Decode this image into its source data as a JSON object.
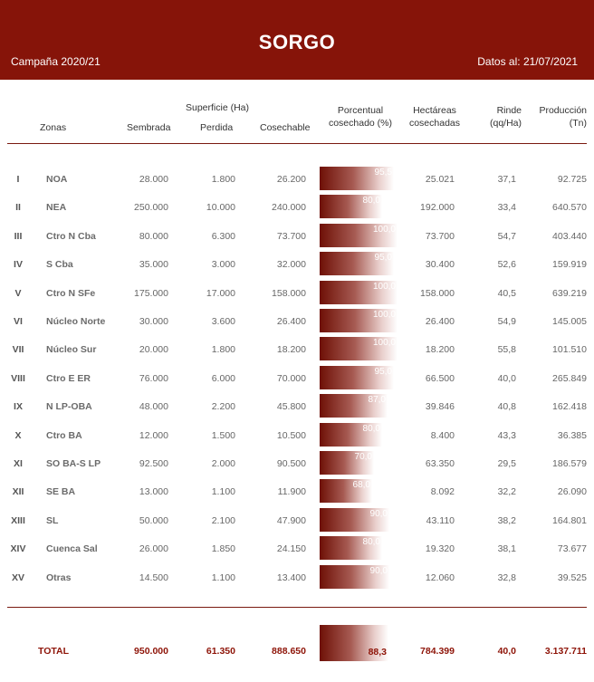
{
  "header": {
    "title": "SORGO",
    "campaign": "Campaña 2020/21",
    "date": "Datos al: 21/07/2021"
  },
  "columns": {
    "zonas": "Zonas",
    "superficie": "Superficie (Ha)",
    "sembrada": "Sembrada",
    "perdida": "Perdida",
    "cosechable": "Cosechable",
    "porcentual_1": "Porcentual",
    "porcentual_2": "cosechado (%)",
    "hectareas_1": "Hectáreas",
    "hectareas_2": "cosechadas",
    "rinde_1": "Rinde",
    "rinde_2": "(qq/Ha)",
    "produccion_1": "Producción",
    "produccion_2": "(Tn)"
  },
  "rows": [
    {
      "id": "I",
      "zona": "NOA",
      "sembrada": "28.000",
      "perdida": "1.800",
      "cosechable": "26.200",
      "pct": "95,5",
      "pct_value": 95.5,
      "hectareas": "25.021",
      "rinde": "37,1",
      "produccion": "92.725"
    },
    {
      "id": "II",
      "zona": "NEA",
      "sembrada": "250.000",
      "perdida": "10.000",
      "cosechable": "240.000",
      "pct": "80,0",
      "pct_value": 80.0,
      "hectareas": "192.000",
      "rinde": "33,4",
      "produccion": "640.570"
    },
    {
      "id": "III",
      "zona": "Ctro N Cba",
      "sembrada": "80.000",
      "perdida": "6.300",
      "cosechable": "73.700",
      "pct": "100,0",
      "pct_value": 100.0,
      "hectareas": "73.700",
      "rinde": "54,7",
      "produccion": "403.440"
    },
    {
      "id": "IV",
      "zona": "S Cba",
      "sembrada": "35.000",
      "perdida": "3.000",
      "cosechable": "32.000",
      "pct": "95,0",
      "pct_value": 95.0,
      "hectareas": "30.400",
      "rinde": "52,6",
      "produccion": "159.919"
    },
    {
      "id": "V",
      "zona": "Ctro N SFe",
      "sembrada": "175.000",
      "perdida": "17.000",
      "cosechable": "158.000",
      "pct": "100,0",
      "pct_value": 100.0,
      "hectareas": "158.000",
      "rinde": "40,5",
      "produccion": "639.219"
    },
    {
      "id": "VI",
      "zona": "Núcleo Norte",
      "sembrada": "30.000",
      "perdida": "3.600",
      "cosechable": "26.400",
      "pct": "100,0",
      "pct_value": 100.0,
      "hectareas": "26.400",
      "rinde": "54,9",
      "produccion": "145.005"
    },
    {
      "id": "VII",
      "zona": "Núcleo Sur",
      "sembrada": "20.000",
      "perdida": "1.800",
      "cosechable": "18.200",
      "pct": "100,0",
      "pct_value": 100.0,
      "hectareas": "18.200",
      "rinde": "55,8",
      "produccion": "101.510"
    },
    {
      "id": "VIII",
      "zona": "Ctro E ER",
      "sembrada": "76.000",
      "perdida": "6.000",
      "cosechable": "70.000",
      "pct": "95,0",
      "pct_value": 95.0,
      "hectareas": "66.500",
      "rinde": "40,0",
      "produccion": "265.849"
    },
    {
      "id": "IX",
      "zona": "N LP-OBA",
      "sembrada": "48.000",
      "perdida": "2.200",
      "cosechable": "45.800",
      "pct": "87,0",
      "pct_value": 87.0,
      "hectareas": "39.846",
      "rinde": "40,8",
      "produccion": "162.418"
    },
    {
      "id": "X",
      "zona": "Ctro BA",
      "sembrada": "12.000",
      "perdida": "1.500",
      "cosechable": "10.500",
      "pct": "80,0",
      "pct_value": 80.0,
      "hectareas": "8.400",
      "rinde": "43,3",
      "produccion": "36.385"
    },
    {
      "id": "XI",
      "zona": "SO BA-S LP",
      "sembrada": "92.500",
      "perdida": "2.000",
      "cosechable": "90.500",
      "pct": "70,0",
      "pct_value": 70.0,
      "hectareas": "63.350",
      "rinde": "29,5",
      "produccion": "186.579"
    },
    {
      "id": "XII",
      "zona": "SE BA",
      "sembrada": "13.000",
      "perdida": "1.100",
      "cosechable": "11.900",
      "pct": "68,0",
      "pct_value": 68.0,
      "hectareas": "8.092",
      "rinde": "32,2",
      "produccion": "26.090"
    },
    {
      "id": "XIII",
      "zona": "SL",
      "sembrada": "50.000",
      "perdida": "2.100",
      "cosechable": "47.900",
      "pct": "90,0",
      "pct_value": 90.0,
      "hectareas": "43.110",
      "rinde": "38,2",
      "produccion": "164.801"
    },
    {
      "id": "XIV",
      "zona": "Cuenca Sal",
      "sembrada": "26.000",
      "perdida": "1.850",
      "cosechable": "24.150",
      "pct": "80,0",
      "pct_value": 80.0,
      "hectareas": "19.320",
      "rinde": "38,1",
      "produccion": "73.677"
    },
    {
      "id": "XV",
      "zona": "Otras",
      "sembrada": "14.500",
      "perdida": "1.100",
      "cosechable": "13.400",
      "pct": "90,0",
      "pct_value": 90.0,
      "hectareas": "12.060",
      "rinde": "32,8",
      "produccion": "39.525"
    }
  ],
  "total": {
    "label": "TOTAL",
    "sembrada": "950.000",
    "perdida": "61.350",
    "cosechable": "888.650",
    "pct": "88,3",
    "pct_value": 88.3,
    "hectareas": "784.399",
    "rinde": "40,0",
    "produccion": "3.137.711"
  },
  "colors": {
    "banner": "#861409",
    "bar_dark": "#6e1006",
    "total_text": "#8e1408"
  }
}
